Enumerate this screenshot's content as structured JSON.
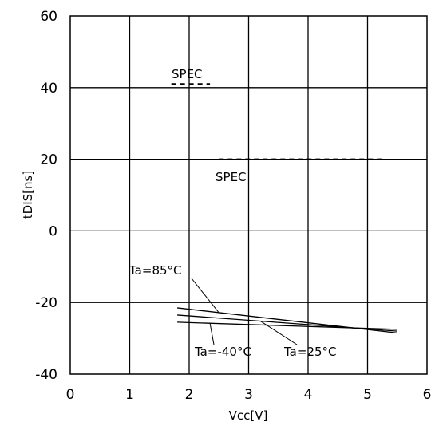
{
  "chart_data": {
    "type": "line",
    "xlabel": "Vcc[V]",
    "ylabel": "tDIS[ns]",
    "xlim": [
      0,
      6
    ],
    "ylim": [
      -40,
      60
    ],
    "grid": true,
    "x_ticks": [
      "0",
      "1",
      "2",
      "3",
      "4",
      "5",
      "6"
    ],
    "y_ticks": [
      "60",
      "40",
      "20",
      "0",
      "-20",
      "-40"
    ],
    "series": [
      {
        "name": "Ta=85°C",
        "x": [
          1.8,
          5.5
        ],
        "y": [
          -21.5,
          -28.5
        ]
      },
      {
        "name": "Ta=25°C",
        "x": [
          1.8,
          5.5
        ],
        "y": [
          -23.5,
          -28
        ]
      },
      {
        "name": "Ta=-40°C",
        "x": [
          1.8,
          5.5
        ],
        "y": [
          -25.5,
          -27.5
        ]
      }
    ],
    "spec_limits": [
      {
        "name": "SPEC",
        "x": [
          1.7,
          2.35
        ],
        "y": 41
      },
      {
        "name": "SPEC",
        "x": [
          2.5,
          5.3
        ],
        "y": 20
      }
    ],
    "annotations": [
      "SPEC",
      "SPEC",
      "Ta=85°C",
      "Ta=-40°C",
      "Ta=25°C"
    ]
  }
}
